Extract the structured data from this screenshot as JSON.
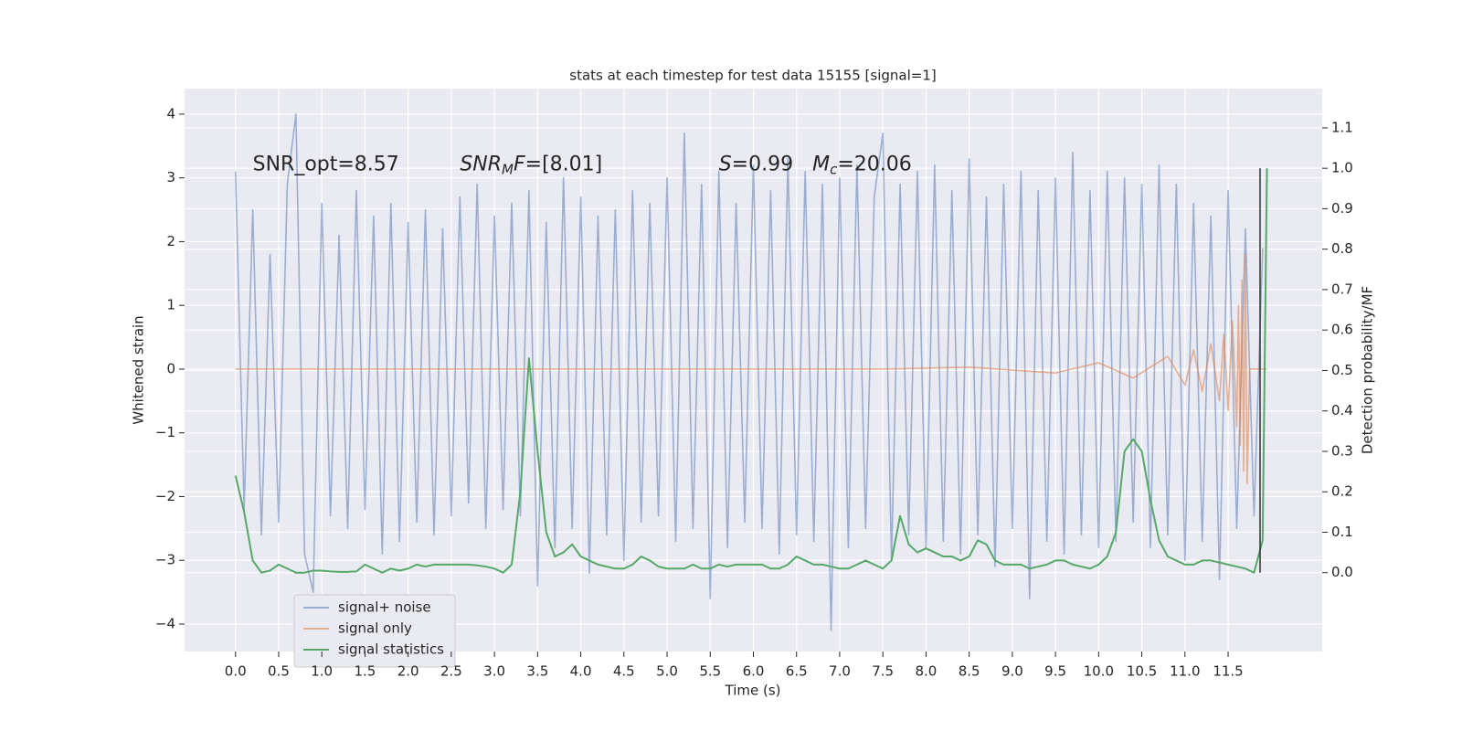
{
  "chart_data": {
    "type": "line",
    "title": "stats at each timestep for test data 15155 [signal=1]",
    "xlabel": "Time (s)",
    "ylabel": "Whitened strain",
    "y2label": "Detection probability/MF",
    "grid": true,
    "legend": "lower left",
    "xlim": [
      -0.59,
      12.59
    ],
    "ylim": [
      -4.43,
      4.4
    ],
    "y2lim": [
      -0.195,
      1.197
    ],
    "xticks": [
      {
        "value": 0,
        "label": "0.0"
      },
      0.5,
      {
        "value": 1,
        "label": "1.0"
      },
      1.5,
      {
        "value": 2,
        "label": "2.0"
      },
      2.5,
      {
        "value": 3,
        "label": "3.0"
      },
      3.5,
      {
        "value": 4,
        "label": "4.0"
      },
      4.5,
      {
        "value": 5,
        "label": "5.0"
      },
      5.5,
      {
        "value": 6,
        "label": "6.0"
      },
      6.5,
      {
        "value": 7,
        "label": "7.0"
      },
      7.5,
      {
        "value": 8,
        "label": "8.0"
      },
      8.5,
      {
        "value": 9,
        "label": "9.0"
      },
      9.5,
      {
        "value": 10,
        "label": "10.0"
      },
      10.5,
      {
        "value": 11,
        "label": "11.0"
      },
      11.5
    ],
    "yticks": [
      {
        "value": -4,
        "label": "−4"
      },
      {
        "value": -3,
        "label": "−3"
      },
      {
        "value": -2,
        "label": "−2"
      },
      {
        "value": -1,
        "label": "−1"
      },
      0,
      1,
      2,
      3,
      4
    ],
    "y2ticks": [
      {
        "value": 0,
        "label": "0.0"
      },
      0.1,
      0.2,
      0.3,
      0.4,
      0.5,
      0.6,
      0.7,
      0.8,
      0.9,
      {
        "value": 1,
        "label": "1.0"
      },
      1.1
    ],
    "annotations": [
      {
        "x": 0.2,
        "y": 3.2,
        "parts": [
          {
            "text": "SNR_opt=8.57"
          }
        ]
      },
      {
        "x": 2.6,
        "y": 3.2,
        "parts": [
          {
            "text": "SNR",
            "italic": true
          },
          {
            "text": "M",
            "italic": true,
            "sub": true
          },
          {
            "text": "F",
            "italic": true
          },
          {
            "text": "=[8.01]"
          }
        ]
      },
      {
        "x": 5.6,
        "y": 3.2,
        "parts": [
          {
            "text": "S",
            "italic": true
          },
          {
            "text": "=0.99   "
          },
          {
            "text": "M",
            "italic": true
          },
          {
            "text": "c",
            "italic": true,
            "sub": true
          },
          {
            "text": "=20.06"
          }
        ]
      }
    ],
    "vline": {
      "x": 11.87,
      "ymin": 0,
      "ymax": 1,
      "color": "#333333",
      "axis": "y2"
    },
    "series": [
      {
        "name": "signal+ noise",
        "color": "#4c72b0",
        "opacity": 0.5,
        "x": [
          0,
          0.1,
          0.2,
          0.3,
          0.4,
          0.5,
          0.6,
          0.7,
          0.8,
          0.9,
          1,
          1.1,
          1.2,
          1.3,
          1.4,
          1.5,
          1.6,
          1.7,
          1.8,
          1.9,
          2,
          2.1,
          2.2,
          2.3,
          2.4,
          2.5,
          2.6,
          2.7,
          2.8,
          2.9,
          3,
          3.1,
          3.2,
          3.3,
          3.4,
          3.5,
          3.6,
          3.7,
          3.8,
          3.9,
          4,
          4.1,
          4.2,
          4.3,
          4.4,
          4.5,
          4.6,
          4.7,
          4.8,
          4.9,
          5,
          5.1,
          5.2,
          5.3,
          5.4,
          5.5,
          5.6,
          5.7,
          5.8,
          5.9,
          6,
          6.1,
          6.2,
          6.3,
          6.4,
          6.5,
          6.6,
          6.7,
          6.8,
          6.9,
          7,
          7.1,
          7.2,
          7.3,
          7.4,
          7.5,
          7.6,
          7.7,
          7.8,
          7.9,
          8,
          8.1,
          8.2,
          8.3,
          8.4,
          8.5,
          8.6,
          8.7,
          8.8,
          8.9,
          9,
          9.1,
          9.2,
          9.3,
          9.4,
          9.5,
          9.6,
          9.7,
          9.8,
          9.9,
          10,
          10.1,
          10.2,
          10.3,
          10.4,
          10.5,
          10.6,
          10.7,
          10.8,
          10.9,
          11,
          11.1,
          11.2,
          11.3,
          11.4,
          11.5,
          11.6,
          11.7,
          11.8,
          11.9
        ],
        "values": [
          3.1,
          -2.2,
          2.5,
          -2.6,
          1.8,
          -2.4,
          2.9,
          4.0,
          -2.9,
          -3.5,
          2.6,
          -2.3,
          2.1,
          -2.5,
          2.8,
          -2.2,
          2.4,
          -2.9,
          2.6,
          -2.7,
          2.3,
          -2.4,
          2.5,
          -2.6,
          2.2,
          -2.3,
          2.7,
          -2.1,
          2.9,
          -2.5,
          2.4,
          -2.2,
          2.6,
          -2.3,
          2.8,
          -3.4,
          2.3,
          -2.8,
          3.0,
          -2.5,
          2.7,
          -3.2,
          2.4,
          -2.6,
          2.5,
          -3.0,
          2.8,
          -2.4,
          2.6,
          -2.3,
          3.0,
          -2.7,
          3.7,
          -2.5,
          2.9,
          -3.6,
          3.1,
          -2.8,
          2.6,
          -2.4,
          3.2,
          -2.5,
          2.8,
          -2.9,
          3.3,
          -2.6,
          3.1,
          -2.7,
          2.9,
          -4.1,
          3.0,
          -2.8,
          3.2,
          -2.5,
          2.7,
          3.7,
          -3.0,
          2.9,
          -2.6,
          3.1,
          -2.8,
          3.2,
          -2.7,
          2.8,
          -2.9,
          3.3,
          -2.6,
          2.7,
          -3.1,
          2.9,
          -2.5,
          3.1,
          -3.6,
          2.8,
          -2.7,
          3.0,
          -2.9,
          3.4,
          -2.6,
          2.8,
          -2.8,
          3.1,
          -2.7,
          3.0,
          -2.4,
          2.9,
          -2.8,
          3.2,
          -2.6,
          2.9,
          -3.0,
          2.6,
          -2.7,
          2.4,
          -3.3,
          2.8,
          -2.5,
          2.2,
          -2.3,
          1.9
        ]
      },
      {
        "name": "signal only",
        "color": "#dd8452",
        "opacity": 0.6,
        "x": [
          0,
          7.5,
          8.5,
          9.5,
          10.0,
          10.4,
          10.8,
          11.0,
          11.1,
          11.2,
          11.3,
          11.4,
          11.45,
          11.5,
          11.55,
          11.6,
          11.62,
          11.64,
          11.66,
          11.68,
          11.7,
          11.72,
          11.75,
          11.95
        ],
        "values": [
          0,
          0,
          0.03,
          -0.06,
          0.1,
          -0.14,
          0.2,
          -0.25,
          0.3,
          -0.35,
          0.4,
          -0.5,
          0.55,
          -0.65,
          0.75,
          -0.9,
          1.0,
          -1.2,
          1.4,
          -1.6,
          1.8,
          -1.8,
          0,
          0
        ]
      },
      {
        "name": "signal statistics",
        "color": "#55a868",
        "opacity": 1,
        "axis": "y2",
        "x": [
          0,
          0.1,
          0.2,
          0.3,
          0.4,
          0.5,
          0.6,
          0.7,
          0.8,
          0.9,
          1,
          1.1,
          1.2,
          1.3,
          1.4,
          1.5,
          1.6,
          1.7,
          1.8,
          1.9,
          2,
          2.1,
          2.2,
          2.3,
          2.4,
          2.5,
          2.6,
          2.7,
          2.8,
          2.9,
          3,
          3.1,
          3.2,
          3.3,
          3.4,
          3.5,
          3.6,
          3.7,
          3.8,
          3.9,
          4,
          4.1,
          4.2,
          4.3,
          4.4,
          4.5,
          4.6,
          4.7,
          4.8,
          4.9,
          5,
          5.1,
          5.2,
          5.3,
          5.4,
          5.5,
          5.6,
          5.7,
          5.8,
          5.9,
          6,
          6.1,
          6.2,
          6.3,
          6.4,
          6.5,
          6.6,
          6.7,
          6.8,
          6.9,
          7,
          7.1,
          7.2,
          7.3,
          7.4,
          7.5,
          7.6,
          7.7,
          7.8,
          7.9,
          8,
          8.1,
          8.2,
          8.3,
          8.4,
          8.5,
          8.6,
          8.7,
          8.8,
          8.9,
          9,
          9.1,
          9.2,
          9.3,
          9.4,
          9.5,
          9.6,
          9.7,
          9.8,
          9.9,
          10,
          10.1,
          10.2,
          10.3,
          10.4,
          10.5,
          10.6,
          10.7,
          10.8,
          10.9,
          11,
          11.1,
          11.2,
          11.3,
          11.4,
          11.5,
          11.6,
          11.7,
          11.8,
          11.9,
          11.95
        ],
        "values": [
          0.24,
          0.15,
          0.03,
          0.0,
          0.005,
          0.02,
          0.01,
          0.0,
          0.0,
          0.005,
          0.005,
          0.003,
          0.002,
          0.002,
          0.003,
          0.02,
          0.01,
          0.0,
          0.01,
          0.005,
          0.01,
          0.02,
          0.015,
          0.02,
          0.02,
          0.02,
          0.02,
          0.02,
          0.018,
          0.015,
          0.01,
          0.0,
          0.02,
          0.2,
          0.53,
          0.3,
          0.1,
          0.04,
          0.05,
          0.07,
          0.04,
          0.03,
          0.02,
          0.015,
          0.01,
          0.01,
          0.02,
          0.04,
          0.03,
          0.015,
          0.01,
          0.01,
          0.01,
          0.02,
          0.01,
          0.01,
          0.02,
          0.015,
          0.02,
          0.02,
          0.02,
          0.02,
          0.01,
          0.01,
          0.02,
          0.04,
          0.03,
          0.02,
          0.02,
          0.015,
          0.01,
          0.01,
          0.02,
          0.03,
          0.02,
          0.01,
          0.03,
          0.14,
          0.07,
          0.05,
          0.06,
          0.05,
          0.04,
          0.04,
          0.03,
          0.04,
          0.08,
          0.07,
          0.03,
          0.02,
          0.02,
          0.02,
          0.01,
          0.015,
          0.02,
          0.03,
          0.03,
          0.02,
          0.015,
          0.01,
          0.02,
          0.04,
          0.1,
          0.3,
          0.33,
          0.3,
          0.18,
          0.08,
          0.04,
          0.03,
          0.02,
          0.02,
          0.03,
          0.03,
          0.025,
          0.02,
          0.015,
          0.01,
          0.0,
          0.08,
          1.0
        ]
      }
    ]
  }
}
